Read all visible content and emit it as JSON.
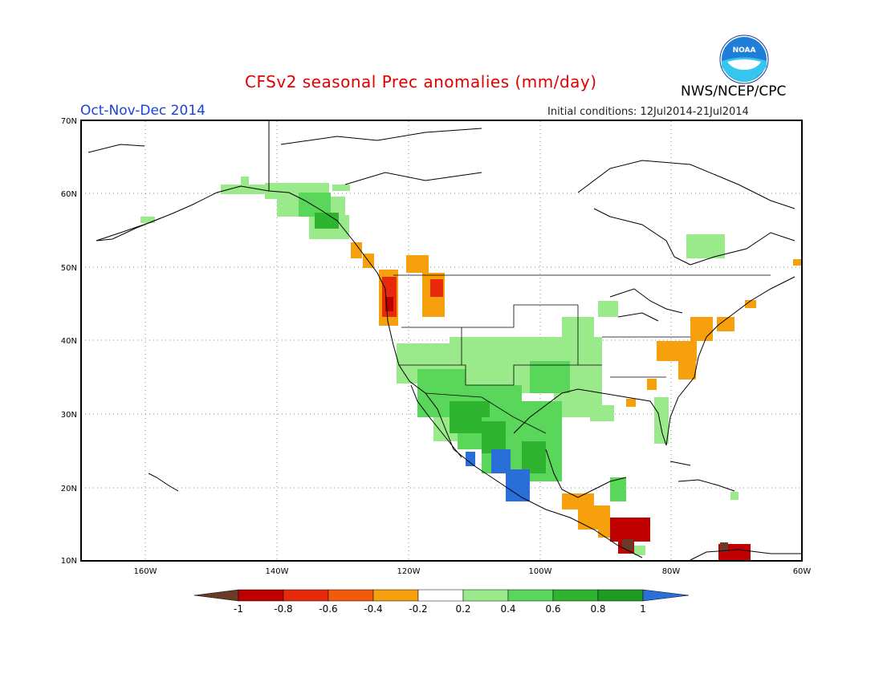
{
  "title": "CFSv2 seasonal Prec anomalies (mm/day)",
  "period": "Oct-Nov-Dec 2014",
  "initial_conditions": "Initial conditions: 12Jul2014-21Jul2014",
  "agency": "NWS/NCEP/CPC",
  "logo_text": "NOAA",
  "map": {
    "lat_labels": [
      "70N",
      "60N",
      "50N",
      "40N",
      "30N",
      "20N",
      "10N"
    ],
    "lon_labels": [
      "160W",
      "140W",
      "120W",
      "100W",
      "80W",
      "60W"
    ]
  },
  "colorbar": {
    "labels": [
      "-1",
      "-0.8",
      "-0.6",
      "-0.4",
      "-0.2",
      "0.2",
      "0.4",
      "0.6",
      "0.8",
      "1"
    ],
    "colors": [
      "#6b3a26",
      "#bf0000",
      "#e82a0c",
      "#f25a0e",
      "#f5a00c",
      "#ffffff",
      "#9aea8c",
      "#5ad65a",
      "#2eb42e",
      "#1f9c1f",
      "#2a6ed8"
    ]
  }
}
